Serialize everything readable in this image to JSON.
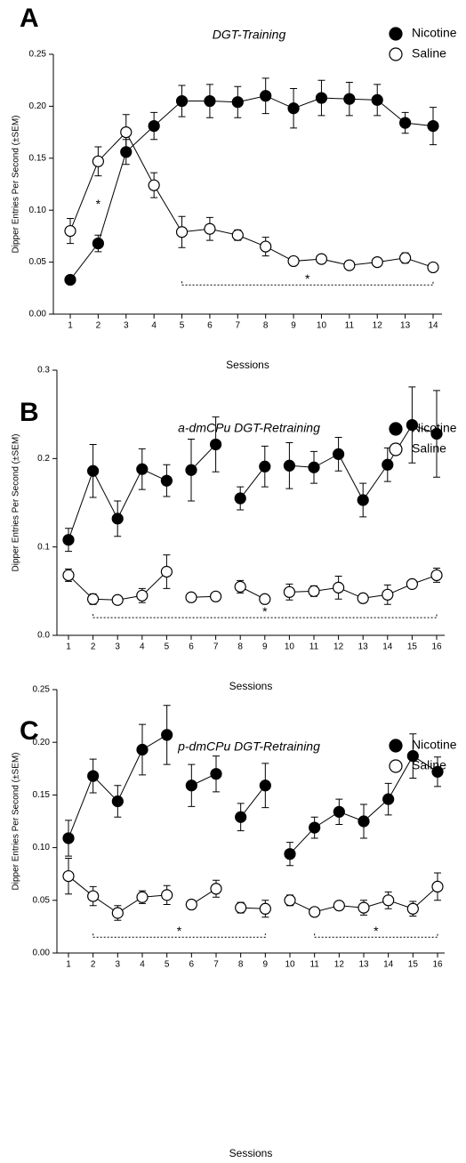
{
  "chart_data": [
    {
      "type": "line",
      "panel": "A",
      "title": "DGT-Training",
      "xlabel": "Sessions",
      "ylabel": "Dipper Entries Per Second (±SEM)",
      "categories": [
        1,
        2,
        3,
        4,
        5,
        6,
        7,
        8,
        9,
        10,
        11,
        12,
        13,
        14
      ],
      "ylim": [
        0,
        0.25
      ],
      "yticks": [
        {
          "value": 0,
          "label": "0.00"
        },
        0.05,
        {
          "value": 0.1,
          "label": "0.10"
        },
        0.15,
        {
          "value": 0.2,
          "label": "0.20"
        },
        0.25
      ],
      "legend": "upper right",
      "breaks_after": [],
      "series": [
        {
          "name": "Nicotine",
          "color": "#000000",
          "marker_fill": "#000000",
          "values": [
            0.033,
            0.068,
            0.156,
            0.181,
            0.205,
            0.205,
            0.204,
            0.21,
            0.198,
            0.208,
            0.207,
            0.206,
            0.184,
            0.181
          ],
          "errors": [
            0.002,
            0.008,
            0.012,
            0.013,
            0.015,
            0.016,
            0.015,
            0.017,
            0.019,
            0.017,
            0.016,
            0.015,
            0.01,
            0.018
          ]
        },
        {
          "name": "Saline",
          "color": "#000000",
          "marker_fill": "#ffffff",
          "values": [
            0.08,
            0.147,
            0.175,
            0.124,
            0.079,
            0.082,
            0.076,
            0.065,
            0.051,
            0.053,
            0.047,
            0.05,
            0.054,
            0.045
          ],
          "errors": [
            0.012,
            0.014,
            0.017,
            0.012,
            0.015,
            0.011,
            0.005,
            0.009,
            0.003,
            0.004,
            0.003,
            0.003,
            0.005,
            0.003
          ]
        }
      ],
      "annotations": [
        {
          "text": "*",
          "x": 2,
          "y": 0.105
        }
      ],
      "brackets": [
        {
          "text": "*",
          "from": 5,
          "to": 14,
          "y": 0.028
        }
      ]
    },
    {
      "type": "line",
      "panel": "B",
      "title": "a-dmCPu DGT-Retraining",
      "xlabel": "Sessions",
      "ylabel": "Dipper Entries Per Second (±SEM)",
      "categories": [
        1,
        2,
        3,
        4,
        5,
        6,
        7,
        8,
        9,
        10,
        11,
        12,
        13,
        14,
        15,
        16
      ],
      "ylim": [
        0,
        0.3
      ],
      "yticks": [
        {
          "value": 0,
          "label": "0.0"
        },
        0.1,
        0.2,
        0.3
      ],
      "legend": "upper right",
      "breaks_after": [
        5,
        7,
        9
      ],
      "series": [
        {
          "name": "Nicotine",
          "color": "#000000",
          "marker_fill": "#000000",
          "values": [
            0.108,
            0.186,
            0.132,
            0.188,
            0.175,
            0.187,
            0.216,
            0.155,
            0.191,
            0.192,
            0.19,
            0.205,
            0.153,
            0.193,
            0.238,
            0.228
          ],
          "errors": [
            0.013,
            0.03,
            0.02,
            0.023,
            0.018,
            0.035,
            0.031,
            0.013,
            0.023,
            0.026,
            0.018,
            0.019,
            0.019,
            0.019,
            0.043,
            0.049
          ]
        },
        {
          "name": "Saline",
          "color": "#000000",
          "marker_fill": "#ffffff",
          "values": [
            0.068,
            0.041,
            0.04,
            0.045,
            0.072,
            0.043,
            0.044,
            0.055,
            0.041,
            0.049,
            0.05,
            0.054,
            0.042,
            0.046,
            0.058,
            0.068
          ],
          "errors": [
            0.007,
            0.006,
            0.003,
            0.008,
            0.019,
            0.003,
            0.004,
            0.007,
            0.003,
            0.009,
            0.006,
            0.013,
            0.005,
            0.011,
            0.004,
            0.008
          ]
        }
      ],
      "annotations": [],
      "brackets": [
        {
          "text": "*",
          "from": 2,
          "to": 16,
          "y": 0.02
        }
      ]
    },
    {
      "type": "line",
      "panel": "C",
      "title": "p-dmCPu DGT-Retraining",
      "xlabel": "Sessions",
      "ylabel": "Dipper Entries Per Second (±SEM)",
      "categories": [
        1,
        2,
        3,
        4,
        5,
        6,
        7,
        8,
        9,
        10,
        11,
        12,
        13,
        14,
        15,
        16
      ],
      "ylim": [
        0,
        0.25
      ],
      "yticks": [
        {
          "value": 0,
          "label": "0.00"
        },
        0.05,
        {
          "value": 0.1,
          "label": "0.10"
        },
        0.15,
        {
          "value": 0.2,
          "label": "0.20"
        },
        0.25
      ],
      "legend": "upper right",
      "breaks_after": [
        5,
        7,
        9
      ],
      "series": [
        {
          "name": "Nicotine",
          "color": "#000000",
          "marker_fill": "#000000",
          "values": [
            0.109,
            0.168,
            0.144,
            0.193,
            0.207,
            0.159,
            0.17,
            0.129,
            0.159,
            0.094,
            0.119,
            0.134,
            0.125,
            0.146,
            0.187,
            0.172
          ],
          "errors": [
            0.017,
            0.016,
            0.015,
            0.024,
            0.028,
            0.02,
            0.017,
            0.013,
            0.021,
            0.011,
            0.01,
            0.012,
            0.016,
            0.015,
            0.021,
            0.014
          ]
        },
        {
          "name": "Saline",
          "color": "#000000",
          "marker_fill": "#ffffff",
          "values": [
            0.073,
            0.054,
            0.038,
            0.053,
            0.055,
            0.046,
            0.061,
            0.043,
            0.042,
            0.05,
            0.039,
            0.045,
            0.043,
            0.05,
            0.042,
            0.063
          ],
          "errors": [
            0.017,
            0.009,
            0.007,
            0.006,
            0.009,
            0.004,
            0.008,
            0.005,
            0.008,
            0.005,
            0.003,
            0.004,
            0.007,
            0.008,
            0.007,
            0.013
          ]
        }
      ],
      "annotations": [],
      "brackets": [
        {
          "text": "*",
          "from": 2,
          "to": 9,
          "y": 0.015
        },
        {
          "text": "*",
          "from": 11,
          "to": 16,
          "y": 0.015
        }
      ]
    }
  ]
}
